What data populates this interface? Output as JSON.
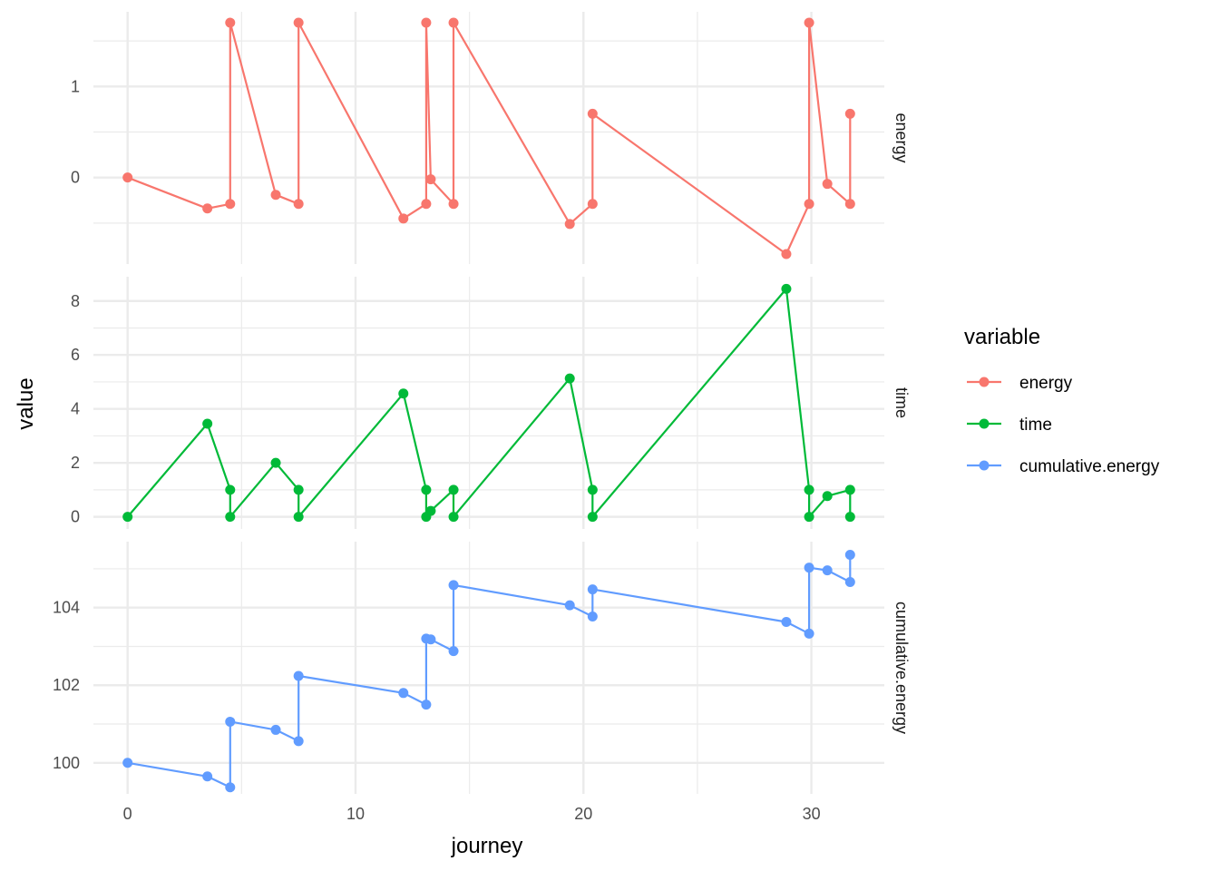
{
  "chart_data": {
    "type": "line",
    "facet_layout": "rows",
    "grid": true,
    "legend_position": "right",
    "xlabel": "journey",
    "ylabel": "value",
    "xlim": [
      -1.5,
      33.2
    ],
    "x_ticks": [
      0,
      10,
      20,
      30
    ],
    "x": [
      0,
      3.5,
      4.5,
      4.5,
      6.5,
      7.5,
      7.5,
      12.1,
      13.1,
      13.1,
      13.3,
      14.3,
      14.3,
      19.4,
      20.4,
      20.4,
      28.9,
      29.9,
      29.9,
      30.7,
      31.7,
      31.7
    ],
    "legend": {
      "title": "variable",
      "entries": [
        "energy",
        "time",
        "cumulative.energy"
      ]
    },
    "series": [
      {
        "name": "energy",
        "color": "#F8766D",
        "ylim": [
          -0.95,
          1.82
        ],
        "y_ticks": [
          0,
          1
        ],
        "values": [
          0,
          -0.34,
          -0.29,
          1.7,
          -0.19,
          -0.29,
          1.7,
          -0.45,
          -0.29,
          1.7,
          -0.02,
          -0.29,
          1.7,
          -0.51,
          -0.29,
          0.7,
          -0.84,
          -0.29,
          1.7,
          -0.07,
          -0.29,
          0.7
        ]
      },
      {
        "name": "time",
        "color": "#00BA38",
        "ylim": [
          -0.45,
          8.9
        ],
        "y_ticks": [
          0,
          2,
          4,
          6,
          8
        ],
        "values": [
          0,
          3.45,
          1,
          0,
          2,
          1,
          0,
          4.57,
          1,
          0,
          0.22,
          1,
          0,
          5.13,
          1,
          0,
          8.45,
          1,
          0,
          0.77,
          1,
          0
        ]
      },
      {
        "name": "cumulative.energy",
        "color": "#619CFF",
        "ylim": [
          99.2,
          105.7
        ],
        "y_ticks": [
          100,
          102,
          104
        ],
        "values": [
          100,
          99.65,
          99.37,
          101.06,
          100.85,
          100.56,
          102.24,
          101.8,
          101.5,
          103.2,
          103.18,
          102.88,
          104.58,
          104.06,
          103.77,
          104.47,
          103.63,
          103.33,
          105.03,
          104.96,
          104.66,
          105.36
        ]
      }
    ]
  }
}
